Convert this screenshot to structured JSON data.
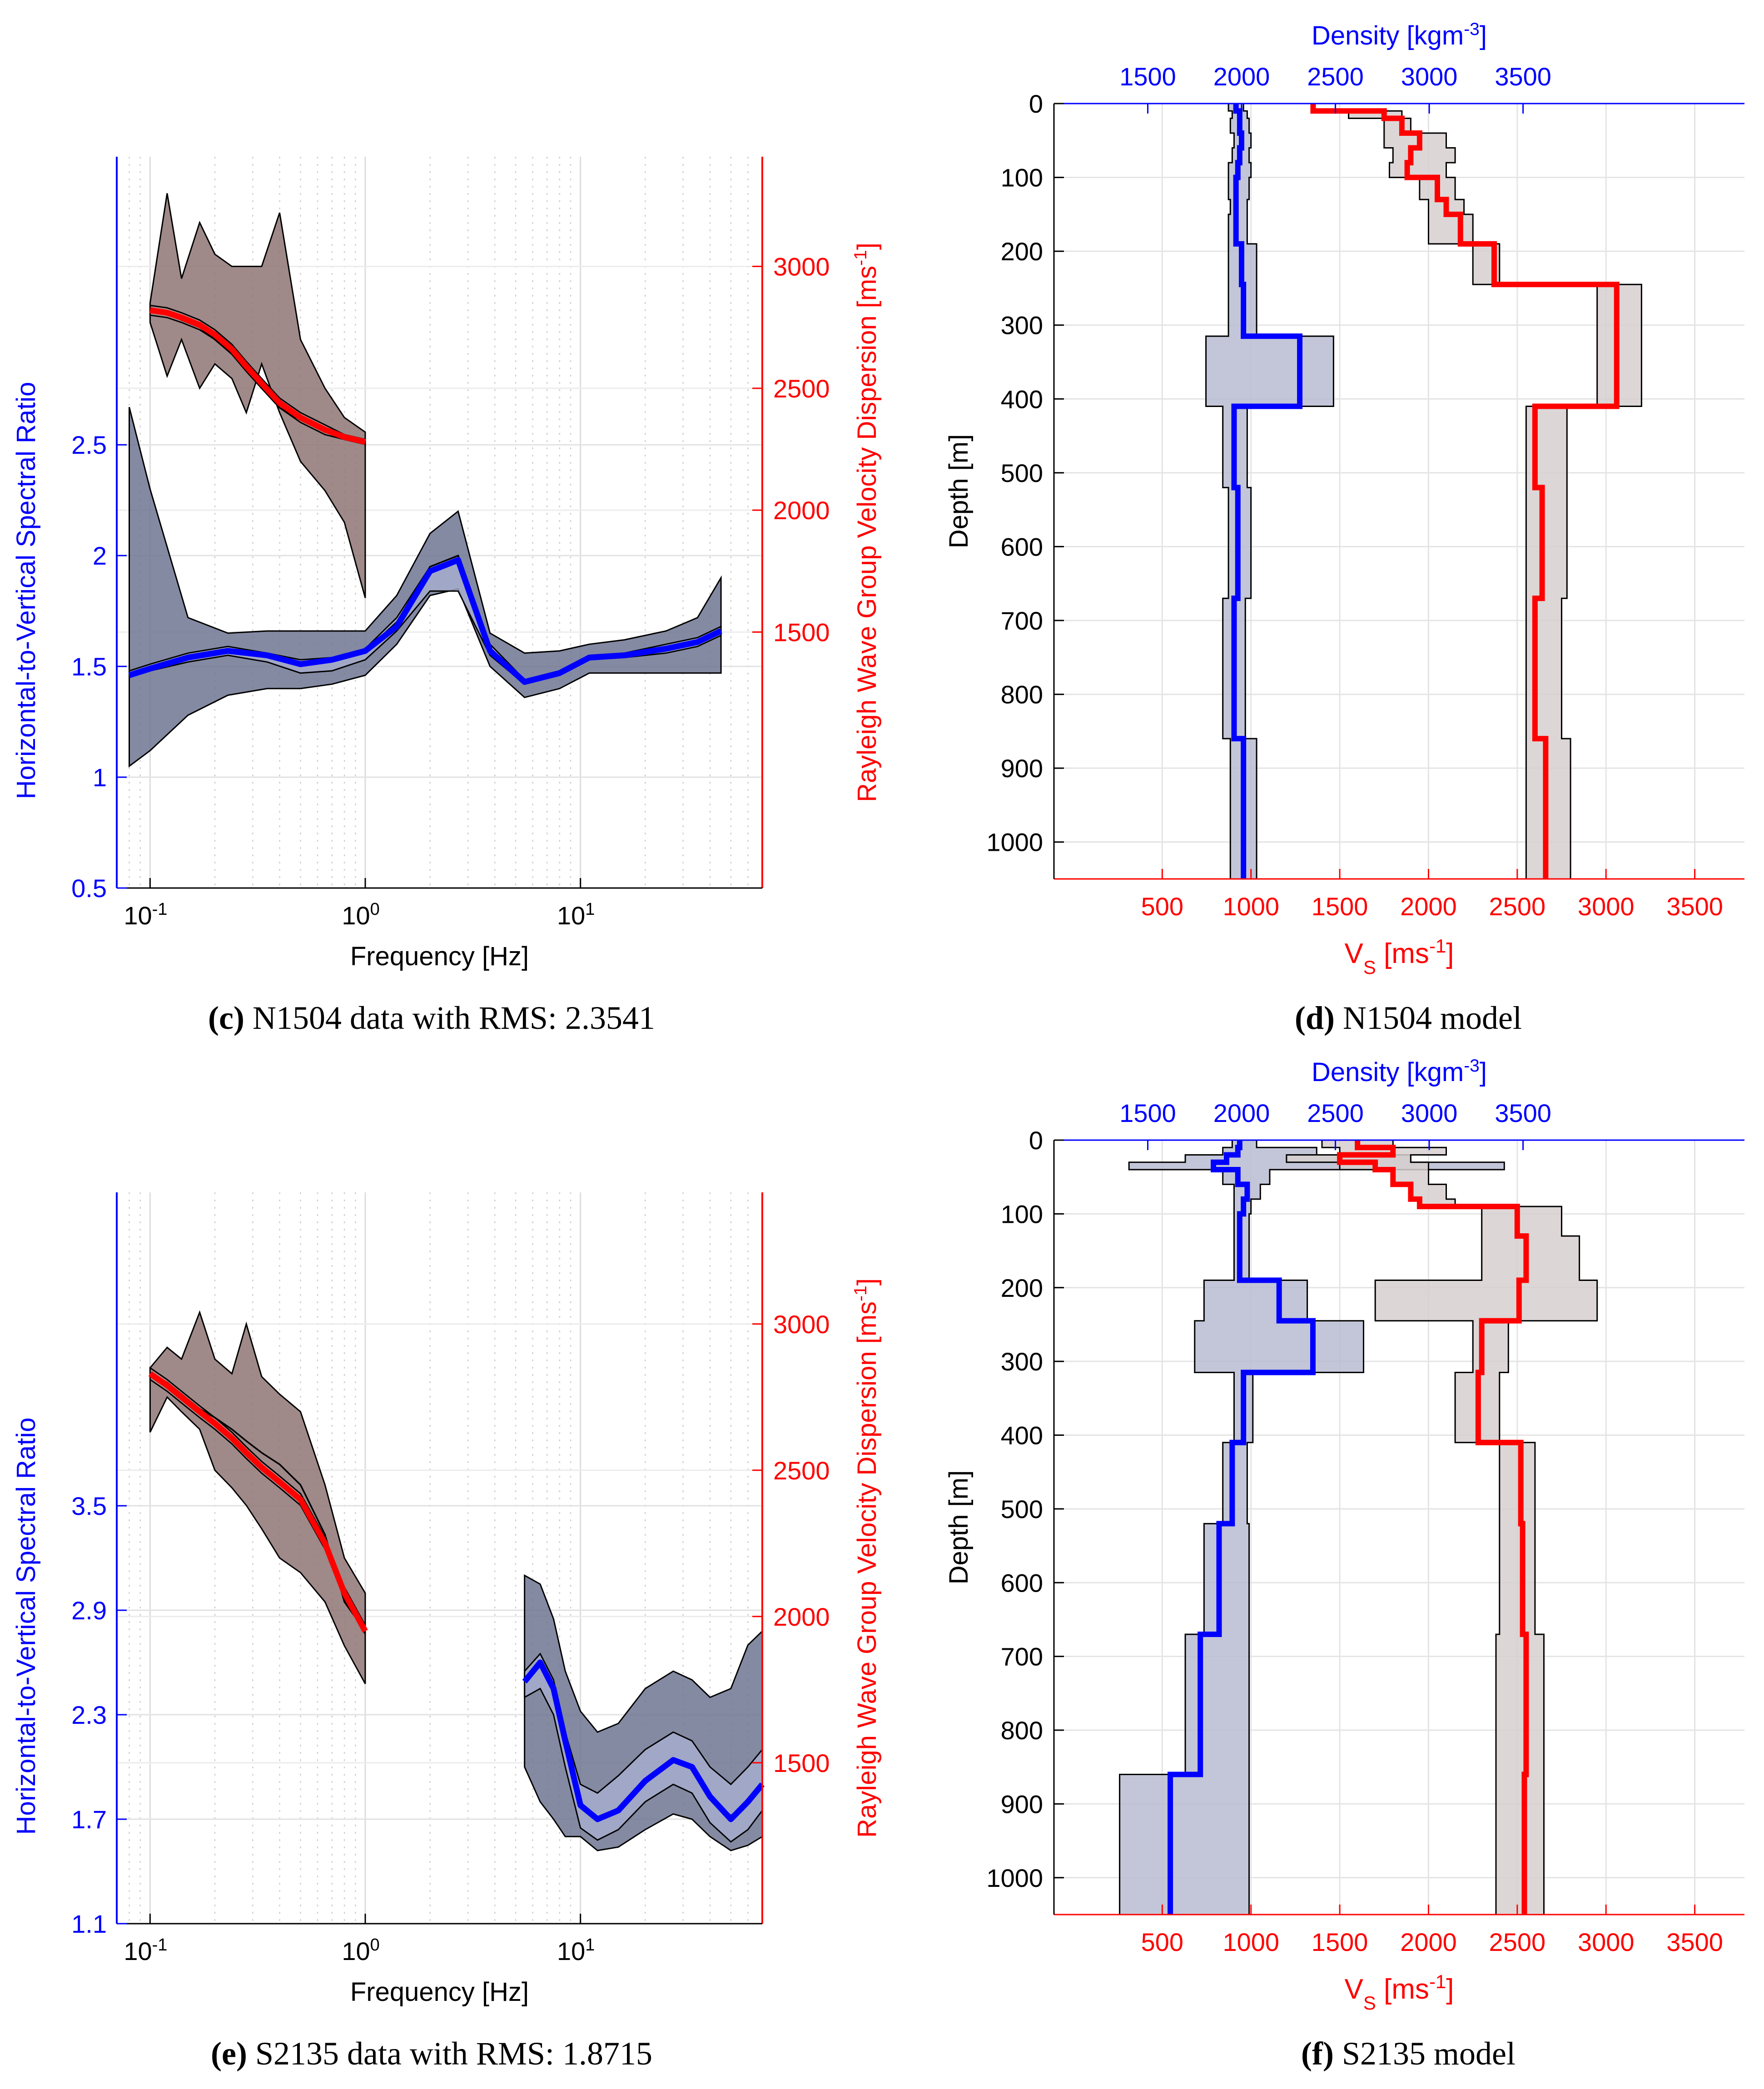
{
  "colors": {
    "hv": "#0000ff",
    "rayleigh": "#ff0000",
    "hv_band": "#6e7592",
    "ray_band": "#8e7474",
    "dens_band": "#b8bcd1",
    "vs_band": "#d7cfcf"
  },
  "captions": [
    {
      "letter": "c",
      "text": " N1504 data with RMS: 2.3541"
    },
    {
      "letter": "d",
      "text": " N1504 model"
    },
    {
      "letter": "e",
      "text": " S2135 data with RMS: 1.8715"
    },
    {
      "letter": "f",
      "text": " S2135 model"
    }
  ],
  "chart_data": [
    {
      "panel": "c",
      "type": "line",
      "xlabel": "Frequency [Hz]",
      "xscale": "log",
      "xlim": [
        0.07,
        70
      ],
      "xticks": [
        {
          "v": 0.1,
          "b": "10",
          "e": "-1"
        },
        {
          "v": 1,
          "b": "10",
          "e": "0"
        },
        {
          "v": 10,
          "b": "10",
          "e": "1"
        }
      ],
      "ylabel_left": "Horizontal-to-Vertical Spectral Ratio",
      "ylim_left": [
        0.5,
        3.8
      ],
      "yticks_left": [
        "0.5",
        "1",
        "1.5",
        "2",
        "2.5"
      ],
      "ylabel_right": "Rayleigh Wave Group Velocity Dispersion [ms",
      "ylabel_right_sup": "-1",
      "ylabel_right_end": "]",
      "ylim_right": [
        450,
        3450
      ],
      "yticks_right": [
        "1500",
        "2000",
        "2500",
        "3000"
      ],
      "series": [
        {
          "name": "H/V data",
          "axis": "left",
          "x": [
            0.08,
            0.1,
            0.15,
            0.23,
            0.35,
            0.5,
            0.7,
            1.0,
            1.4,
            2.0,
            2.7,
            3.8,
            5.5,
            8,
            11,
            16,
            25,
            35,
            45
          ],
          "y": [
            1.47,
            1.5,
            1.55,
            1.58,
            1.55,
            1.52,
            1.53,
            1.57,
            1.7,
            1.95,
            2.0,
            1.58,
            1.43,
            1.47,
            1.53,
            1.55,
            1.58,
            1.6,
            1.66
          ],
          "lo": [
            1.05,
            1.12,
            1.28,
            1.37,
            1.4,
            1.4,
            1.42,
            1.46,
            1.6,
            1.82,
            1.85,
            1.5,
            1.36,
            1.4,
            1.47,
            1.47,
            1.47,
            1.47,
            1.47
          ],
          "hi": [
            2.67,
            2.3,
            1.72,
            1.65,
            1.66,
            1.66,
            1.66,
            1.66,
            1.82,
            2.1,
            2.2,
            1.65,
            1.56,
            1.57,
            1.6,
            1.62,
            1.66,
            1.72,
            1.9
          ]
        },
        {
          "name": "H/V model",
          "axis": "left",
          "x": [
            0.08,
            0.1,
            0.15,
            0.23,
            0.35,
            0.5,
            0.7,
            1.0,
            1.4,
            2.0,
            2.7,
            3.8,
            5.5,
            8,
            11,
            16,
            25,
            35,
            45
          ],
          "y": [
            1.46,
            1.49,
            1.54,
            1.57,
            1.55,
            1.51,
            1.53,
            1.57,
            1.68,
            1.93,
            1.98,
            1.57,
            1.43,
            1.47,
            1.54,
            1.55,
            1.58,
            1.61,
            1.66
          ],
          "lo": [
            1.45,
            1.48,
            1.52,
            1.55,
            1.52,
            1.47,
            1.48,
            1.53,
            1.66,
            1.84,
            1.84,
            1.55,
            1.42,
            1.46,
            1.53,
            1.54,
            1.56,
            1.59,
            1.64
          ],
          "hi": [
            1.48,
            1.51,
            1.56,
            1.59,
            1.56,
            1.53,
            1.54,
            1.58,
            1.72,
            1.95,
            2.0,
            1.6,
            1.44,
            1.48,
            1.55,
            1.56,
            1.6,
            1.63,
            1.68
          ]
        },
        {
          "name": "Rayleigh data",
          "axis": "right",
          "x": [
            0.1,
            0.12,
            0.14,
            0.17,
            0.2,
            0.24,
            0.28,
            0.33,
            0.4,
            0.5,
            0.65,
            0.8,
            1.0
          ],
          "y": [
            2830,
            2810,
            2780,
            2750,
            2700,
            2640,
            2570,
            2500,
            2420,
            2370,
            2320,
            2300,
            2290
          ],
          "lo": [
            2770,
            2550,
            2700,
            2500,
            2600,
            2540,
            2400,
            2600,
            2400,
            2200,
            2080,
            1950,
            1640
          ],
          "hi": [
            2850,
            3300,
            2950,
            3180,
            3050,
            3000,
            3000,
            3000,
            3220,
            2700,
            2500,
            2380,
            2320
          ]
        },
        {
          "name": "Rayleigh model",
          "axis": "right",
          "x": [
            0.1,
            0.12,
            0.14,
            0.17,
            0.2,
            0.24,
            0.28,
            0.33,
            0.4,
            0.5,
            0.65,
            0.8,
            1.0
          ],
          "y": [
            2820,
            2810,
            2790,
            2760,
            2720,
            2660,
            2590,
            2520,
            2440,
            2380,
            2330,
            2300,
            2280
          ],
          "lo": [
            2800,
            2790,
            2770,
            2740,
            2700,
            2640,
            2570,
            2500,
            2420,
            2360,
            2310,
            2290,
            2270
          ],
          "hi": [
            2840,
            2830,
            2810,
            2780,
            2740,
            2680,
            2610,
            2540,
            2460,
            2400,
            2350,
            2310,
            2290
          ]
        }
      ]
    },
    {
      "panel": "d",
      "type": "line",
      "title_top": "Density [kgm",
      "title_top_sup": "-3",
      "title_top_end": "]",
      "top_ticks": [
        "1500",
        "2000",
        "2500",
        "3000",
        "3500"
      ],
      "top_tick_values": [
        1500,
        2000,
        2500,
        3000,
        3500
      ],
      "top_lim": [
        1000,
        4680
      ],
      "xlabel": "V",
      "xlabel_sub": "S",
      "xlabel_rest": " [ms",
      "xlabel_sup": "-1",
      "xlabel_end": "]",
      "bottom_ticks": [
        "500",
        "1000",
        "1500",
        "2000",
        "2500",
        "3000",
        "3500"
      ],
      "bottom_tick_values": [
        500,
        1000,
        1500,
        2000,
        2500,
        3000,
        3500
      ],
      "bottom_lim": [
        -110,
        3780
      ],
      "ylabel": "Depth [m]",
      "ylim": [
        0,
        1050
      ],
      "yticks": [
        "0",
        "100",
        "200",
        "300",
        "400",
        "500",
        "600",
        "700",
        "800",
        "900",
        "1000"
      ],
      "density": {
        "depth": [
          0,
          10,
          20,
          40,
          60,
          80,
          100,
          130,
          150,
          190,
          245,
          315,
          410,
          520,
          670,
          860,
          1050
        ],
        "best": [
          1970,
          1990,
          1990,
          2000,
          1990,
          1980,
          1970,
          1970,
          1970,
          2000,
          2010,
          2310,
          1960,
          1980,
          1960,
          2010
        ],
        "lo": [
          1930,
          1950,
          1940,
          1960,
          1950,
          1930,
          1930,
          1940,
          1930,
          1930,
          1930,
          1810,
          1900,
          1930,
          1900,
          1940
        ],
        "hi": [
          2010,
          2030,
          2040,
          2050,
          2040,
          2050,
          2040,
          2030,
          2030,
          2080,
          2080,
          2490,
          2030,
          2050,
          2020,
          2080
        ]
      },
      "vs": {
        "depth": [
          0,
          10,
          20,
          40,
          60,
          80,
          100,
          130,
          150,
          190,
          245,
          315,
          410,
          520,
          670,
          860,
          1050
        ],
        "best": [
          1350,
          1750,
          1850,
          1950,
          1900,
          1880,
          2050,
          2100,
          2180,
          2370,
          3060,
          3060,
          2600,
          2640,
          2600,
          2660
        ],
        "lo": [
          1350,
          1550,
          1750,
          1750,
          1800,
          1780,
          1950,
          2000,
          2000,
          2250,
          2950,
          2950,
          2550,
          2550,
          2550,
          2550
        ],
        "hi": [
          1350,
          1850,
          1900,
          2100,
          2150,
          2100,
          2150,
          2200,
          2250,
          2400,
          3200,
          3200,
          2780,
          2780,
          2750,
          2800
        ]
      }
    },
    {
      "panel": "e",
      "type": "line",
      "xlabel": "Frequency [Hz]",
      "xscale": "log",
      "xlim": [
        0.07,
        70
      ],
      "xticks": [
        {
          "v": 0.1,
          "b": "10",
          "e": "-1"
        },
        {
          "v": 1,
          "b": "10",
          "e": "0"
        },
        {
          "v": 10,
          "b": "10",
          "e": "1"
        }
      ],
      "ylabel_left": "Horizontal-to-Vertical Spectral Ratio",
      "ylim_left": [
        1.1,
        5.3
      ],
      "yticks_left": [
        "1.1",
        "1.7",
        "2.3",
        "2.9",
        "3.5"
      ],
      "ylabel_right": "Rayleigh Wave Group Velocity Dispersion [ms",
      "ylabel_right_sup": "-1",
      "ylabel_right_end": "]",
      "ylim_right": [
        950,
        3450
      ],
      "yticks_right": [
        "1500",
        "2000",
        "2500",
        "3000"
      ],
      "series": [
        {
          "name": "H/V data",
          "axis": "left",
          "x": [
            5.5,
            6.5,
            7.5,
            8.5,
            10,
            12,
            15,
            20,
            27,
            33,
            40,
            50,
            60,
            70
          ],
          "y": [
            2.49,
            2.6,
            2.45,
            2.15,
            1.78,
            1.7,
            1.75,
            1.92,
            2.04,
            2.0,
            1.83,
            1.72,
            1.8,
            1.9
          ],
          "lo": [
            2.0,
            1.8,
            1.7,
            1.6,
            1.6,
            1.52,
            1.54,
            1.64,
            1.73,
            1.7,
            1.6,
            1.52,
            1.55,
            1.6
          ],
          "hi": [
            3.1,
            3.05,
            2.85,
            2.55,
            2.32,
            2.2,
            2.25,
            2.45,
            2.55,
            2.5,
            2.4,
            2.45,
            2.7,
            2.78
          ]
        },
        {
          "name": "H/V model",
          "axis": "left",
          "x": [
            5.5,
            6.5,
            7.5,
            8.5,
            10,
            12,
            15,
            20,
            27,
            33,
            40,
            50,
            60,
            70
          ],
          "y": [
            2.49,
            2.6,
            2.45,
            2.15,
            1.78,
            1.7,
            1.75,
            1.92,
            2.04,
            2.0,
            1.83,
            1.7,
            1.8,
            1.9
          ],
          "lo": [
            2.4,
            2.45,
            2.3,
            2.0,
            1.65,
            1.58,
            1.64,
            1.8,
            1.9,
            1.85,
            1.68,
            1.57,
            1.64,
            1.75
          ],
          "hi": [
            2.55,
            2.65,
            2.5,
            2.2,
            1.9,
            1.85,
            1.95,
            2.1,
            2.2,
            2.15,
            2.0,
            1.9,
            2.0,
            2.1
          ]
        },
        {
          "name": "Rayleigh data",
          "axis": "right",
          "x": [
            0.1,
            0.12,
            0.14,
            0.17,
            0.2,
            0.24,
            0.28,
            0.33,
            0.4,
            0.5,
            0.65,
            0.8,
            1.0
          ],
          "y": [
            2830,
            2800,
            2760,
            2710,
            2680,
            2640,
            2600,
            2560,
            2520,
            2450,
            2280,
            2050,
            1950
          ],
          "lo": [
            2630,
            2750,
            2700,
            2640,
            2500,
            2440,
            2380,
            2300,
            2200,
            2150,
            2050,
            1900,
            1770
          ],
          "hi": [
            2850,
            2920,
            2880,
            3040,
            2880,
            2830,
            3000,
            2820,
            2760,
            2700,
            2450,
            2200,
            2080
          ]
        },
        {
          "name": "Rayleigh model",
          "axis": "right",
          "x": [
            0.1,
            0.12,
            0.14,
            0.17,
            0.2,
            0.24,
            0.28,
            0.33,
            0.4,
            0.5,
            0.65,
            0.8,
            1.0
          ],
          "y": [
            2830,
            2790,
            2750,
            2700,
            2660,
            2610,
            2560,
            2510,
            2460,
            2400,
            2250,
            2080,
            1950
          ],
          "lo": [
            2810,
            2770,
            2730,
            2680,
            2640,
            2590,
            2540,
            2490,
            2440,
            2380,
            2230,
            2060,
            1940
          ],
          "hi": [
            2850,
            2810,
            2770,
            2720,
            2680,
            2630,
            2580,
            2530,
            2480,
            2420,
            2270,
            2100,
            1970
          ]
        }
      ]
    },
    {
      "panel": "f",
      "type": "line",
      "title_top": "Density [kgm",
      "title_top_sup": "-3",
      "title_top_end": "]",
      "top_ticks": [
        "1500",
        "2000",
        "2500",
        "3000",
        "3500"
      ],
      "top_tick_values": [
        1500,
        2000,
        2500,
        3000,
        3500
      ],
      "top_lim": [
        1000,
        4680
      ],
      "xlabel": "V",
      "xlabel_sub": "S",
      "xlabel_rest": " [ms",
      "xlabel_sup": "-1",
      "xlabel_end": "]",
      "bottom_ticks": [
        "500",
        "1000",
        "1500",
        "2000",
        "2500",
        "3000",
        "3500"
      ],
      "bottom_tick_values": [
        500,
        1000,
        1500,
        2000,
        2500,
        3000,
        3500
      ],
      "bottom_lim": [
        -110,
        3780
      ],
      "ylabel": "Depth [m]",
      "ylim": [
        0,
        1050
      ],
      "yticks": [
        "0",
        "100",
        "200",
        "300",
        "400",
        "500",
        "600",
        "700",
        "800",
        "900",
        "1000"
      ],
      "density": {
        "depth": [
          0,
          10,
          20,
          30,
          40,
          60,
          80,
          100,
          130,
          190,
          245,
          315,
          410,
          520,
          670,
          860,
          1050
        ],
        "best": [
          1990,
          1980,
          1920,
          1850,
          1980,
          2030,
          2010,
          1990,
          1990,
          2200,
          2380,
          2010,
          1950,
          1880,
          1780,
          1620
        ],
        "lo": [
          1950,
          1900,
          1700,
          1400,
          1900,
          1960,
          1960,
          1960,
          1960,
          1800,
          1750,
          1960,
          1900,
          1800,
          1700,
          1350
        ],
        "hi": [
          2080,
          2400,
          2900,
          3400,
          2150,
          2100,
          2050,
          2040,
          2040,
          2350,
          2650,
          2060,
          2030,
          2040,
          2040,
          2040
        ]
      },
      "vs": {
        "depth": [
          0,
          10,
          20,
          30,
          40,
          60,
          80,
          90,
          130,
          190,
          245,
          315,
          410,
          520,
          670,
          860,
          1050
        ],
        "best": [
          1600,
          1800,
          1500,
          1700,
          1800,
          1900,
          1950,
          2500,
          2550,
          2510,
          2300,
          2280,
          2520,
          2530,
          2550,
          2540
        ],
        "lo": [
          1400,
          1500,
          1200,
          1500,
          1800,
          1900,
          1950,
          2300,
          2300,
          1700,
          2250,
          2150,
          2400,
          2400,
          2380,
          2380
        ],
        "hi": [
          1800,
          2100,
          1900,
          2000,
          2000,
          2100,
          2150,
          2750,
          2850,
          2950,
          2450,
          2400,
          2600,
          2600,
          2650,
          2650
        ]
      }
    }
  ]
}
